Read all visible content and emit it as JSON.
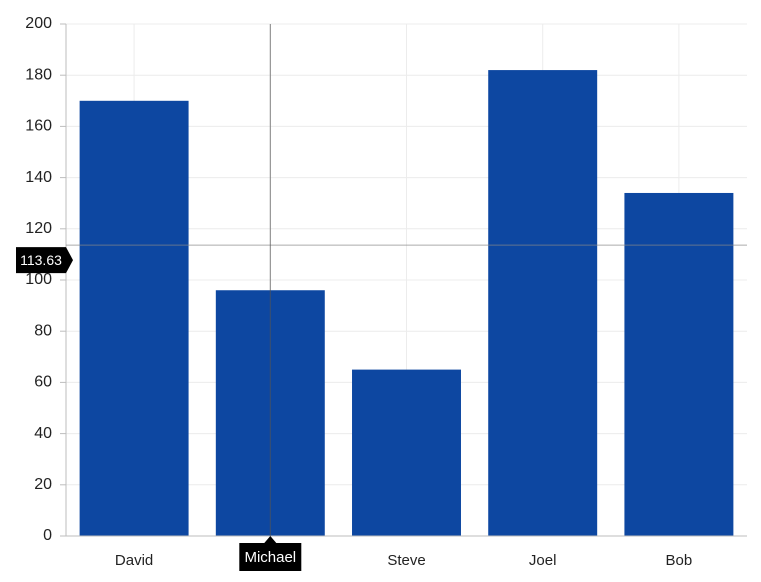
{
  "chart_data": {
    "type": "bar",
    "categories": [
      "David",
      "Michael",
      "Steve",
      "Joel",
      "Bob"
    ],
    "values": [
      170,
      96,
      65,
      182,
      134
    ],
    "color": "#0d47a1",
    "ylim": [
      0,
      200
    ],
    "yticks": [
      0,
      20,
      40,
      60,
      80,
      100,
      120,
      140,
      160,
      180,
      200
    ],
    "grid": true,
    "crosshair": {
      "y": 113.63,
      "x": "Michael"
    }
  }
}
